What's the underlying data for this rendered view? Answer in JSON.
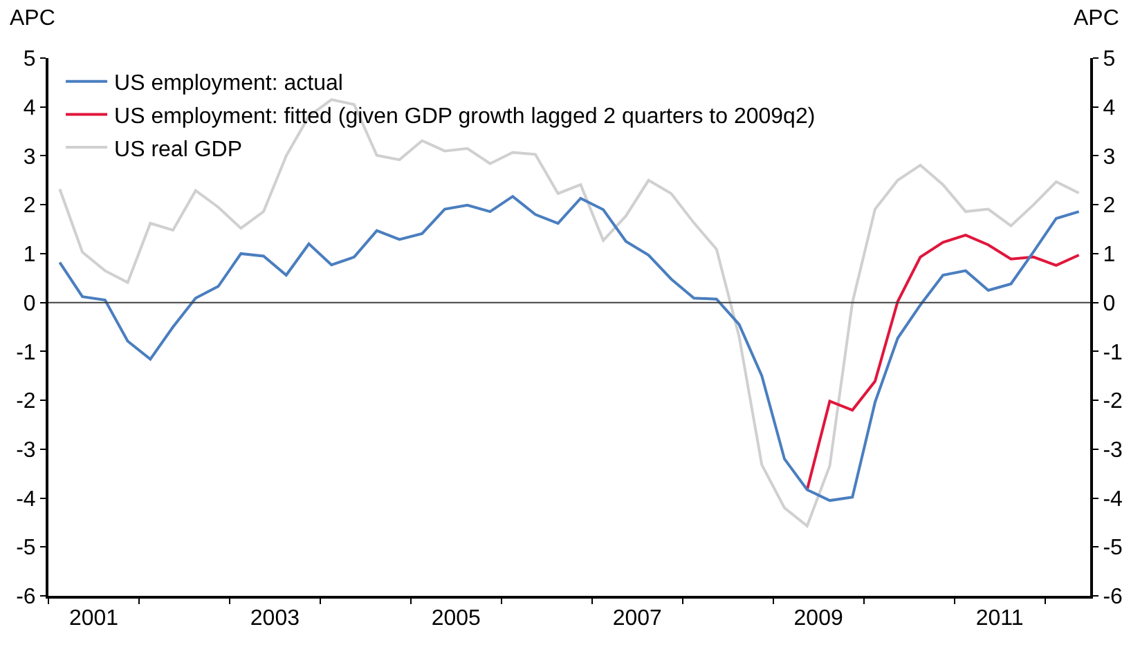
{
  "chart_data": {
    "type": "line",
    "x": [
      2001.125,
      2001.375,
      2001.625,
      2001.875,
      2002.125,
      2002.375,
      2002.625,
      2002.875,
      2003.125,
      2003.375,
      2003.625,
      2003.875,
      2004.125,
      2004.375,
      2004.625,
      2004.875,
      2005.125,
      2005.375,
      2005.625,
      2005.875,
      2006.125,
      2006.375,
      2006.625,
      2006.875,
      2007.125,
      2007.375,
      2007.625,
      2007.875,
      2008.125,
      2008.375,
      2008.625,
      2008.875,
      2009.125,
      2009.375,
      2009.625,
      2009.875,
      2010.125,
      2010.375,
      2010.625,
      2010.875,
      2011.125,
      2011.375,
      2011.625,
      2011.875,
      2012.125,
      2012.375
    ],
    "series": [
      {
        "name": "US employment: actual",
        "color": "#4a7ebf",
        "values": [
          0.82,
          0.12,
          0.05,
          -0.79,
          -1.16,
          -0.5,
          0.09,
          0.33,
          1.0,
          0.95,
          0.56,
          1.2,
          0.77,
          0.93,
          1.47,
          1.29,
          1.41,
          1.91,
          1.99,
          1.86,
          2.17,
          1.8,
          1.62,
          2.13,
          1.9,
          1.25,
          0.97,
          0.48,
          0.09,
          0.07,
          -0.45,
          -1.5,
          -3.2,
          -3.83,
          -4.05,
          -3.98,
          -2.04,
          -0.73,
          -0.05,
          0.56,
          0.65,
          0.25,
          0.38,
          1.04,
          1.72,
          1.86
        ]
      },
      {
        "name": "US employment: fitted (given GDP growth lagged 2 quarters to 2009q2)",
        "color": "#e0163c",
        "values": [
          null,
          null,
          null,
          null,
          null,
          null,
          null,
          null,
          null,
          null,
          null,
          null,
          null,
          null,
          null,
          null,
          null,
          null,
          null,
          null,
          null,
          null,
          null,
          null,
          null,
          null,
          null,
          null,
          null,
          null,
          null,
          null,
          null,
          -3.83,
          -2.02,
          -2.2,
          -1.61,
          0.02,
          0.93,
          1.23,
          1.38,
          1.18,
          0.89,
          0.93,
          0.76,
          0.97
        ]
      },
      {
        "name": "US real GDP",
        "color": "#d0d0d0",
        "values": [
          2.32,
          1.03,
          0.65,
          0.41,
          1.62,
          1.48,
          2.29,
          1.95,
          1.52,
          1.86,
          3.0,
          3.81,
          4.15,
          4.05,
          3.01,
          2.92,
          3.31,
          3.1,
          3.15,
          2.84,
          3.07,
          3.03,
          2.23,
          2.41,
          1.27,
          1.77,
          2.5,
          2.23,
          1.63,
          1.09,
          -0.7,
          -3.32,
          -4.2,
          -4.57,
          -3.34,
          0.0,
          1.91,
          2.5,
          2.81,
          2.41,
          1.86,
          1.91,
          1.57,
          2.0,
          2.47,
          2.24
        ]
      }
    ],
    "ylabel": "APC",
    "y2label": "APC",
    "xlim": [
      2001,
      2012.5
    ],
    "xticks": [
      {
        "value": 2001,
        "label": null
      },
      {
        "value": 2001.5,
        "label": "2001"
      },
      {
        "value": 2002,
        "label": null
      },
      {
        "value": 2003,
        "label": null
      },
      {
        "value": 2003.5,
        "label": "2003"
      },
      {
        "value": 2004,
        "label": null
      },
      {
        "value": 2005,
        "label": null
      },
      {
        "value": 2005.5,
        "label": "2005"
      },
      {
        "value": 2006,
        "label": null
      },
      {
        "value": 2007,
        "label": null
      },
      {
        "value": 2007.5,
        "label": "2007"
      },
      {
        "value": 2008,
        "label": null
      },
      {
        "value": 2009,
        "label": null
      },
      {
        "value": 2009.5,
        "label": "2009"
      },
      {
        "value": 2010,
        "label": null
      },
      {
        "value": 2011,
        "label": null
      },
      {
        "value": 2011.5,
        "label": "2011"
      },
      {
        "value": 2012,
        "label": null
      }
    ],
    "ylim": [
      -6,
      5
    ],
    "yticks": [
      -6,
      -5,
      -4,
      -3,
      -2,
      -1,
      0,
      1,
      2,
      3,
      4,
      5
    ],
    "y2lim": [
      -6,
      5
    ],
    "y2ticks": [
      -6,
      -5,
      -4,
      -3,
      -2,
      -1,
      0,
      1,
      2,
      3,
      4,
      5
    ],
    "ref_lines": [
      {
        "axis": "y",
        "value": 0,
        "color": "#404040"
      }
    ],
    "legend": "top left",
    "marker": "none",
    "line_style": "solid"
  }
}
